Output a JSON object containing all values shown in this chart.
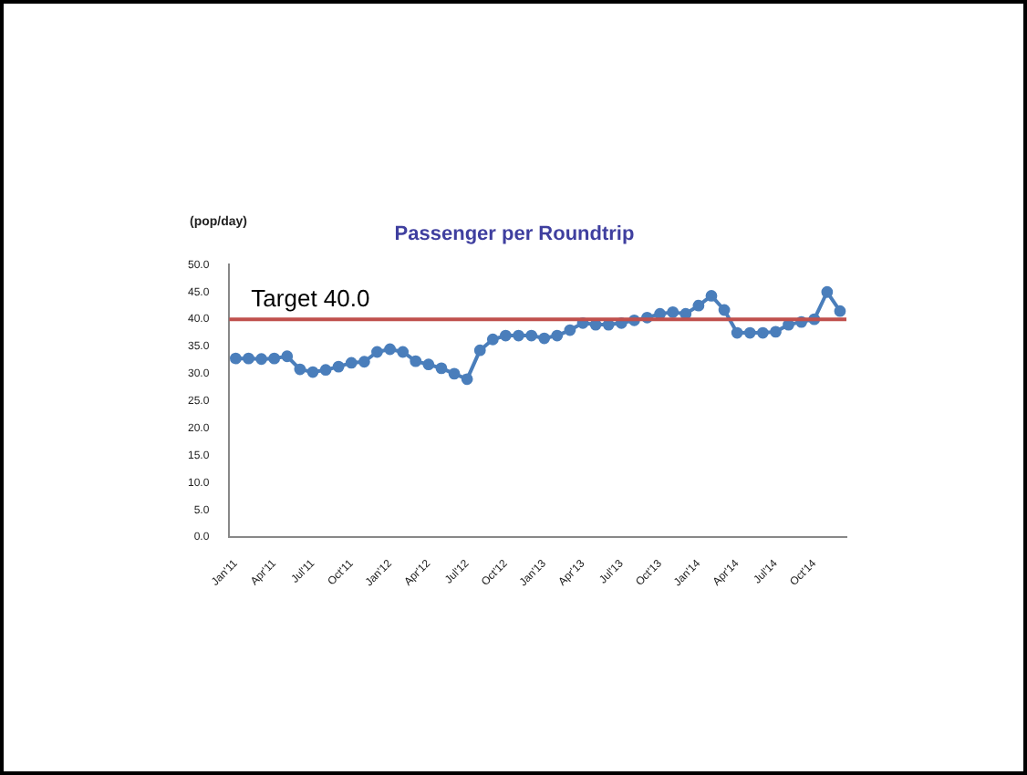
{
  "chart_data": {
    "type": "line",
    "title": "Passenger per Roundtrip",
    "ylabel": "(pop/day)",
    "categories": [
      "Jan'11",
      null,
      null,
      "Apr'11",
      null,
      null,
      "Jul'11",
      null,
      null,
      "Oct'11",
      null,
      null,
      "Jan'12",
      null,
      null,
      "Apr'12",
      null,
      null,
      "Jul'12",
      null,
      null,
      "Oct'12",
      null,
      null,
      "Jan'13",
      null,
      null,
      "Apr'13",
      null,
      null,
      "Jul'13",
      null,
      null,
      "Oct'13",
      null,
      null,
      "Jan'14",
      null,
      null,
      "Apr'14",
      null,
      null,
      "Jul'14",
      null,
      null,
      "Oct'14",
      null,
      null
    ],
    "series": [
      {
        "color": "#4a7ebb",
        "values": [
          32.8,
          32.8,
          32.7,
          32.8,
          33.2,
          30.8,
          30.3,
          30.7,
          31.3,
          32.0,
          32.2,
          34.0,
          34.5,
          34.0,
          32.3,
          31.7,
          31.0,
          30.0,
          29.0,
          34.3,
          36.3,
          37.0,
          37.0,
          37.0,
          36.5,
          37.0,
          38.0,
          39.3,
          39.0,
          39.0,
          39.3,
          39.8,
          40.3,
          41.0,
          41.3,
          41.0,
          42.5,
          44.3,
          41.7,
          37.5,
          37.5,
          37.5,
          37.7,
          39.0,
          39.5,
          40.0,
          45.0,
          41.5
        ]
      }
    ],
    "ylim": [
      0,
      50
    ],
    "yticks": [
      {
        "value": 0,
        "label": "0.0"
      },
      {
        "value": 5,
        "label": "5.0"
      },
      {
        "value": 10,
        "label": "10.0"
      },
      {
        "value": 15,
        "label": "15.0"
      },
      {
        "value": 20,
        "label": "20.0"
      },
      {
        "value": 25,
        "label": "25.0"
      },
      {
        "value": 30,
        "label": "30.0"
      },
      {
        "value": 35,
        "label": "35.0"
      },
      {
        "value": 40,
        "label": "40.0"
      },
      {
        "value": 45,
        "label": "45.0"
      },
      {
        "value": 50,
        "label": "50.0"
      }
    ],
    "ref_lines": [
      {
        "axis": "y",
        "value": 40,
        "label": "Target 40.0",
        "color": "#c0504d"
      }
    ],
    "grid": false,
    "legend": false,
    "marker": "circle",
    "line_style": "solid"
  }
}
